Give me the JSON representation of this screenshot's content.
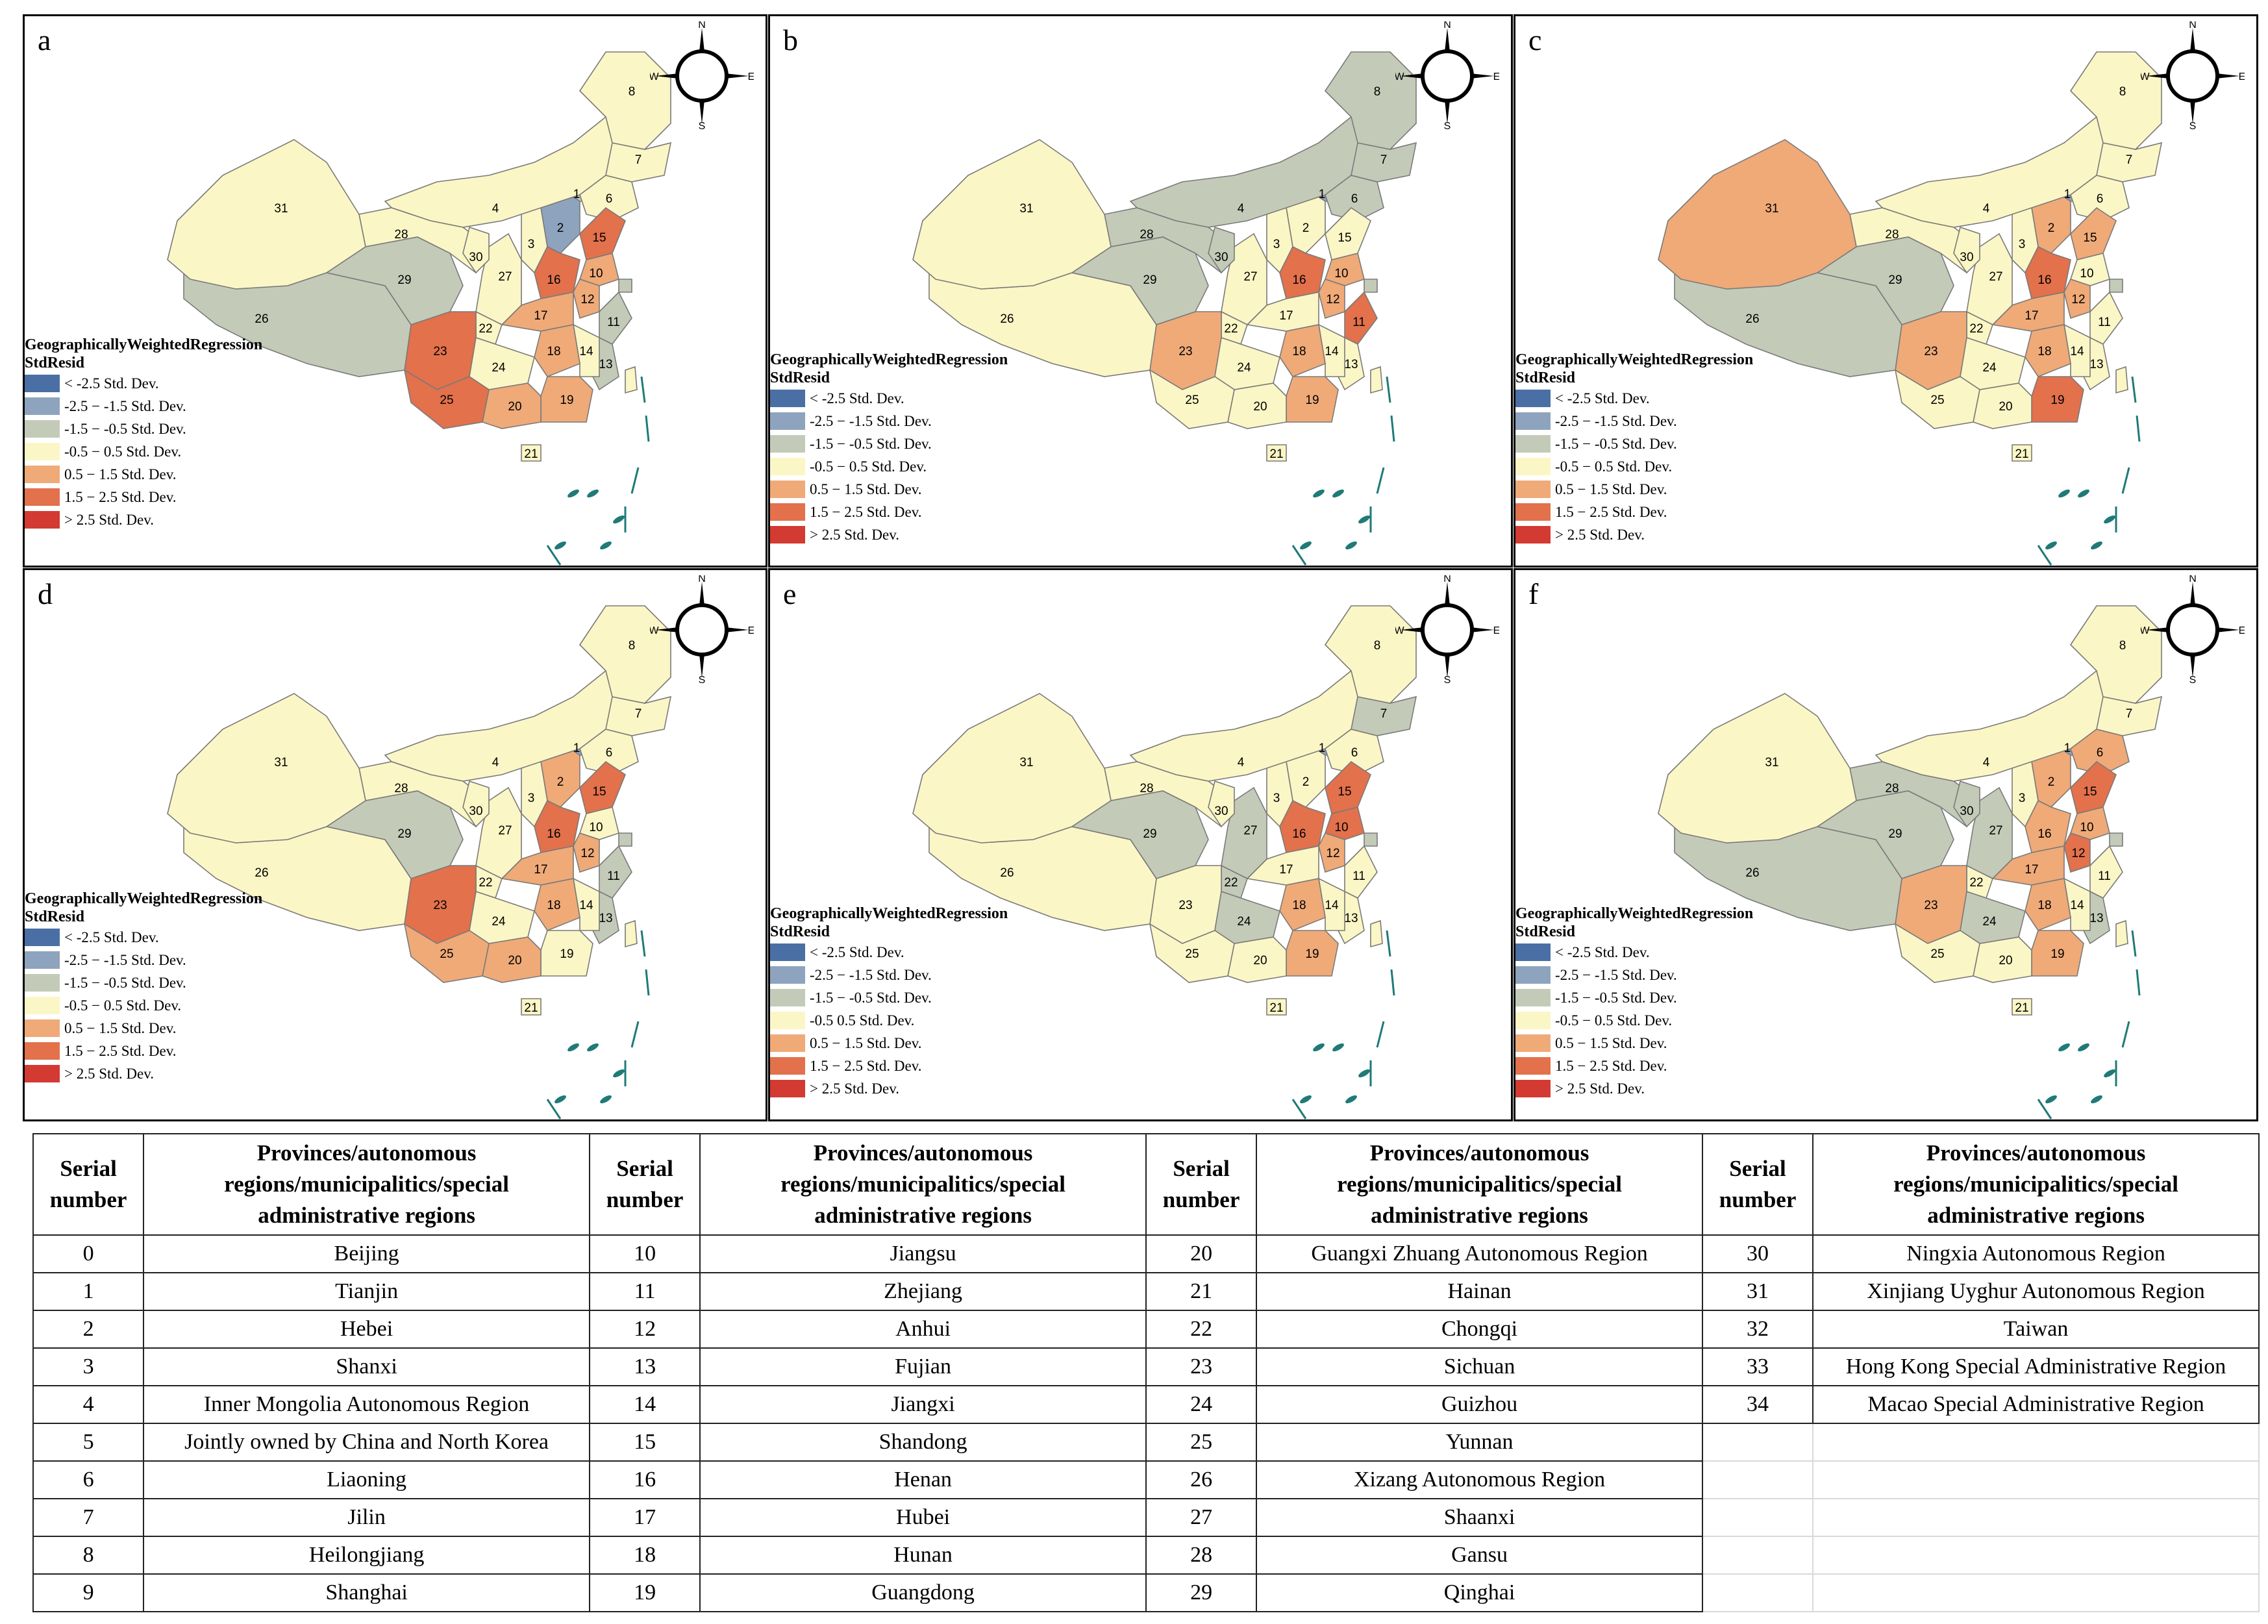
{
  "panels": [
    {
      "letter": "a",
      "legend_offset": "low",
      "colors": {
        "31": "c3",
        "28": "c3",
        "29": "c2",
        "26": "c2",
        "30": "c3",
        "4": "c3",
        "8": "c3",
        "7": "c3",
        "6": "c3",
        "0": "c0",
        "1": "c2",
        "2": "c1",
        "3": "c3",
        "15": "c5",
        "16": "c5",
        "10": "c4",
        "12": "c4",
        "27": "c3",
        "23": "c5",
        "25": "c5",
        "22": "c3",
        "17": "c4",
        "18": "c4",
        "24": "c3",
        "20": "c4",
        "19": "c4",
        "14": "c3",
        "13": "c2",
        "11": "c2",
        "9": "c2",
        "21": "c3",
        "32": "c3"
      }
    },
    {
      "letter": "b",
      "legend_offset": "high",
      "colors": {
        "31": "c3",
        "28": "c2",
        "29": "c2",
        "26": "c3",
        "30": "c2",
        "4": "c2",
        "8": "c2",
        "7": "c2",
        "6": "c2",
        "0": "c0",
        "1": "c1",
        "2": "c3",
        "3": "c3",
        "15": "c3",
        "16": "c5",
        "10": "c4",
        "12": "c4",
        "27": "c3",
        "23": "c4",
        "25": "c3",
        "22": "c3",
        "17": "c3",
        "18": "c4",
        "24": "c3",
        "20": "c3",
        "19": "c4",
        "14": "c3",
        "13": "c3",
        "11": "c5",
        "9": "c2",
        "21": "c3",
        "32": "c3"
      }
    },
    {
      "letter": "c",
      "legend_offset": "high",
      "colors": {
        "31": "c4",
        "28": "c3",
        "29": "c2",
        "26": "c2",
        "30": "c3",
        "4": "c3",
        "8": "c3",
        "7": "c3",
        "6": "c3",
        "0": "c0",
        "1": "c1",
        "2": "c4",
        "3": "c3",
        "15": "c4",
        "16": "c5",
        "10": "c3",
        "12": "c4",
        "27": "c3",
        "23": "c4",
        "25": "c3",
        "22": "c3",
        "17": "c4",
        "18": "c4",
        "24": "c3",
        "20": "c3",
        "19": "c5",
        "14": "c3",
        "13": "c3",
        "11": "c3",
        "9": "c2",
        "21": "c3",
        "32": "c3"
      }
    },
    {
      "letter": "d",
      "legend_offset": "low",
      "colors": {
        "31": "c3",
        "28": "c3",
        "29": "c2",
        "26": "c3",
        "30": "c3",
        "4": "c3",
        "8": "c3",
        "7": "c3",
        "6": "c3",
        "0": "c0",
        "1": "c1",
        "2": "c4",
        "3": "c3",
        "15": "c5",
        "16": "c5",
        "10": "c3",
        "12": "c4",
        "27": "c3",
        "23": "c5",
        "25": "c4",
        "22": "c3",
        "17": "c4",
        "18": "c4",
        "24": "c3",
        "20": "c4",
        "19": "c3",
        "14": "c3",
        "13": "c2",
        "11": "c2",
        "9": "c2",
        "21": "c3",
        "32": "c3"
      }
    },
    {
      "letter": "e",
      "legend_offset": "high",
      "colors": {
        "31": "c3",
        "28": "c3",
        "29": "c2",
        "26": "c3",
        "30": "c3",
        "4": "c3",
        "8": "c3",
        "7": "c2",
        "6": "c3",
        "0": "c0",
        "1": "c1",
        "2": "c3",
        "3": "c3",
        "15": "c5",
        "16": "c5",
        "10": "c5",
        "12": "c4",
        "27": "c2",
        "23": "c3",
        "25": "c3",
        "22": "c2",
        "17": "c3",
        "18": "c4",
        "24": "c2",
        "20": "c3",
        "19": "c4",
        "14": "c3",
        "13": "c3",
        "11": "c3",
        "9": "c2",
        "21": "c3",
        "32": "c3"
      }
    },
    {
      "letter": "f",
      "legend_offset": "high",
      "colors": {
        "31": "c3",
        "28": "c2",
        "29": "c2",
        "26": "c2",
        "30": "c2",
        "4": "c3",
        "8": "c3",
        "7": "c3",
        "6": "c4",
        "0": "c0",
        "1": "c1",
        "2": "c4",
        "3": "c3",
        "15": "c5",
        "16": "c4",
        "10": "c4",
        "12": "c5",
        "27": "c2",
        "23": "c4",
        "25": "c3",
        "22": "c3",
        "17": "c4",
        "18": "c4",
        "24": "c2",
        "20": "c3",
        "19": "c4",
        "14": "c3",
        "13": "c2",
        "11": "c3",
        "9": "c2",
        "21": "c3",
        "32": "c3"
      }
    }
  ],
  "legend": {
    "title_line1": "GeographicallyWeightedRegression",
    "title_line2": "StdResid",
    "classes": [
      {
        "label": "< -2.5 Std. Dev.",
        "color": "#4a6fa5"
      },
      {
        "label": "-2.5 − -1.5 Std. Dev.",
        "color": "#8ea3bd"
      },
      {
        "label": "-1.5 − -0.5 Std. Dev.",
        "color": "#c3cbb8"
      },
      {
        "label": "-0.5 − 0.5 Std. Dev.",
        "color": "#fbf6c5"
      },
      {
        "label": "0.5 − 1.5 Std. Dev.",
        "color": "#efaa78"
      },
      {
        "label": "1.5 − 2.5 Std. Dev.",
        "color": "#e2714c"
      },
      {
        "label": "> 2.5 Std. Dev.",
        "color": "#d33a32"
      }
    ],
    "classes_e": [
      "< -2.5 Std. Dev.",
      "-2.5 − -1.5 Std. Dev.",
      "-1.5 − -0.5 Std. Dev.",
      "-0.5     0.5 Std. Dev.",
      "0.5 − 1.5 Std. Dev.",
      "1.5 − 2.5 Std. Dev.",
      "> 2.5 Std. Dev."
    ]
  },
  "compass": {
    "n": "N",
    "s": "S",
    "e": "E",
    "w": "W"
  },
  "sea_color": "#1f7a78",
  "table": {
    "header_serial": [
      "Serial",
      "number"
    ],
    "header_region": [
      "Provinces/autonomous",
      "regions/municipalitics/special",
      "administrative regions"
    ],
    "columns": [
      [
        [
          "0",
          "Beijing"
        ],
        [
          "1",
          "Tianjin"
        ],
        [
          "2",
          "Hebei"
        ],
        [
          "3",
          "Shanxi"
        ],
        [
          "4",
          "Inner Mongolia Autonomous Region"
        ],
        [
          "5",
          "Jointly owned by China and North Korea"
        ],
        [
          "6",
          "Liaoning"
        ],
        [
          "7",
          "Jilin"
        ],
        [
          "8",
          "Heilongjiang"
        ],
        [
          "9",
          "Shanghai"
        ]
      ],
      [
        [
          "10",
          "Jiangsu"
        ],
        [
          "11",
          "Zhejiang"
        ],
        [
          "12",
          "Anhui"
        ],
        [
          "13",
          "Fujian"
        ],
        [
          "14",
          "Jiangxi"
        ],
        [
          "15",
          "Shandong"
        ],
        [
          "16",
          "Henan"
        ],
        [
          "17",
          "Hubei"
        ],
        [
          "18",
          "Hunan"
        ],
        [
          "19",
          "Guangdong"
        ]
      ],
      [
        [
          "20",
          "Guangxi Zhuang Autonomous Region"
        ],
        [
          "21",
          "Hainan"
        ],
        [
          "22",
          "Chongqi"
        ],
        [
          "23",
          "Sichuan"
        ],
        [
          "24",
          "Guizhou"
        ],
        [
          "25",
          "Yunnan"
        ],
        [
          "26",
          "Xizang Autonomous Region"
        ],
        [
          "27",
          "Shaanxi"
        ],
        [
          "28",
          "Gansu"
        ],
        [
          "29",
          "Qinghai"
        ]
      ],
      [
        [
          "30",
          "Ningxia Autonomous Region"
        ],
        [
          "31",
          "Xinjiang Uyghur Autonomous Region"
        ],
        [
          "32",
          "Taiwan"
        ],
        [
          "33",
          "Hong Kong Special Administrative Region"
        ],
        [
          "34",
          "Macao Special Administrative Region"
        ],
        [
          "",
          ""
        ],
        [
          "",
          ""
        ],
        [
          "",
          ""
        ],
        [
          "",
          ""
        ],
        [
          "",
          ""
        ]
      ]
    ]
  }
}
